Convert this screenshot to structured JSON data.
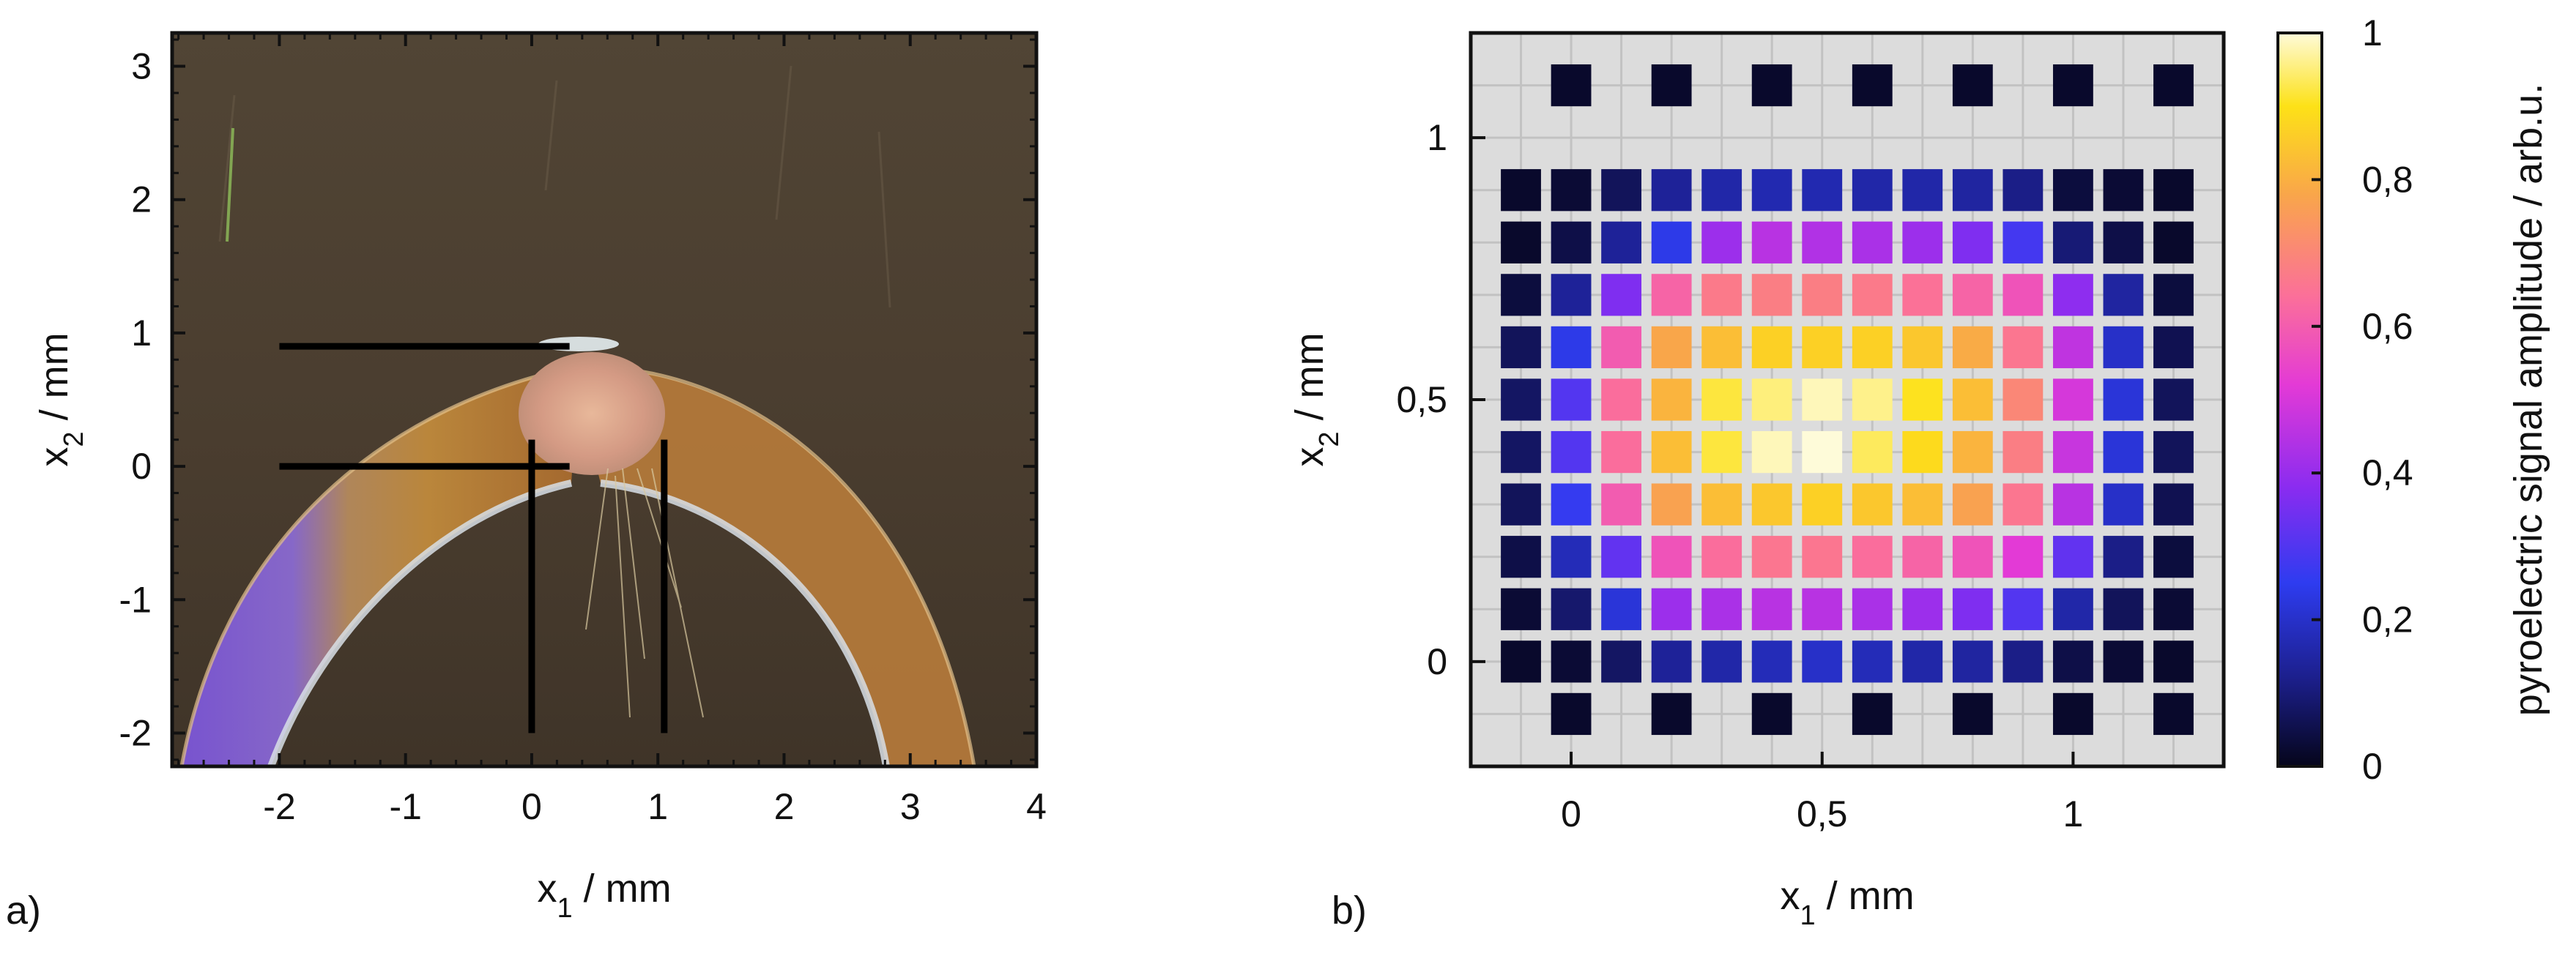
{
  "panels": {
    "a": {
      "label": "a)"
    },
    "b": {
      "label": "b)"
    }
  },
  "chart_data": [
    {
      "type": "image",
      "panel": "a)",
      "description_free": true,
      "x_axis": {
        "label_base": "x",
        "label_sub": "1",
        "label_unit": " / mm",
        "range": [
          -2.85,
          4.0
        ],
        "ticks": [
          -2,
          -1,
          0,
          1,
          2,
          3,
          4
        ],
        "tick_labels": [
          "-2",
          "-1",
          "0",
          "1",
          "2",
          "3",
          "4"
        ]
      },
      "y_axis": {
        "label_base": "x",
        "label_sub": "2",
        "label_unit": " / mm",
        "range": [
          -2.25,
          3.25
        ],
        "ticks": [
          -2,
          -1,
          0,
          1,
          2,
          3
        ],
        "tick_labels": [
          "-2",
          "-1",
          "0",
          "1",
          "2",
          "3"
        ]
      },
      "markers": {
        "horizontal_lines": [
          {
            "y": 0.9,
            "x_from": -2.0,
            "x_to": 0.3
          },
          {
            "y": 0.0,
            "x_from": -2.0,
            "x_to": 0.3
          }
        ],
        "vertical_lines": [
          {
            "x": 0.0,
            "y_from": -2.0,
            "y_to": 0.2
          },
          {
            "x": 1.05,
            "y_from": -2.0,
            "y_to": 0.2
          }
        ]
      }
    },
    {
      "type": "heatmap",
      "panel": "b)",
      "x_axis": {
        "label_base": "x",
        "label_sub": "1",
        "label_unit": " / mm",
        "range": [
          -0.2,
          1.3
        ],
        "ticks": [
          0,
          0.5,
          1
        ],
        "tick_labels": [
          "0",
          "0,5",
          "1"
        ]
      },
      "y_axis": {
        "label_base": "x",
        "label_sub": "2",
        "label_unit": " / mm",
        "range": [
          -0.2,
          1.2
        ],
        "ticks": [
          0,
          0.5,
          1
        ],
        "tick_labels": [
          "0",
          "0,5",
          "1"
        ]
      },
      "grid": true,
      "colorbar": {
        "label": "pyroelectric signal amplitude / arb.u.",
        "range": [
          0,
          1
        ],
        "ticks": [
          0,
          0.2,
          0.4,
          0.6,
          0.8,
          1
        ],
        "tick_labels": [
          "0",
          "0,2",
          "0,4",
          "0,6",
          "0,8",
          "1"
        ],
        "colors": [
          "#05051a",
          "#1c1f8c",
          "#2e3cf0",
          "#8a2cf0",
          "#e33ad6",
          "#fb6f9a",
          "#f9a64a",
          "#fde117",
          "#fefbd9"
        ]
      },
      "main_grid": {
        "x": [
          -0.1,
          0.0,
          0.1,
          0.2,
          0.3,
          0.4,
          0.5,
          0.6,
          0.7,
          0.8,
          0.9,
          1.0,
          1.1,
          1.2
        ],
        "y": [
          0.9,
          0.8,
          0.7,
          0.6,
          0.5,
          0.4,
          0.3,
          0.2,
          0.1,
          0.0
        ],
        "values": [
          [
            0.02,
            0.03,
            0.07,
            0.14,
            0.16,
            0.17,
            0.17,
            0.16,
            0.16,
            0.15,
            0.12,
            0.04,
            0.03,
            0.02
          ],
          [
            0.02,
            0.05,
            0.14,
            0.24,
            0.4,
            0.44,
            0.43,
            0.42,
            0.4,
            0.36,
            0.28,
            0.1,
            0.05,
            0.02
          ],
          [
            0.04,
            0.14,
            0.36,
            0.6,
            0.65,
            0.66,
            0.66,
            0.65,
            0.63,
            0.6,
            0.56,
            0.38,
            0.15,
            0.04
          ],
          [
            0.07,
            0.24,
            0.58,
            0.75,
            0.8,
            0.84,
            0.84,
            0.84,
            0.82,
            0.76,
            0.64,
            0.45,
            0.2,
            0.06
          ],
          [
            0.08,
            0.3,
            0.62,
            0.78,
            0.9,
            0.94,
            0.98,
            0.95,
            0.88,
            0.8,
            0.68,
            0.48,
            0.22,
            0.07
          ],
          [
            0.08,
            0.3,
            0.62,
            0.8,
            0.9,
            0.98,
            1.0,
            0.92,
            0.86,
            0.78,
            0.66,
            0.46,
            0.22,
            0.07
          ],
          [
            0.07,
            0.26,
            0.58,
            0.74,
            0.8,
            0.82,
            0.84,
            0.82,
            0.8,
            0.74,
            0.64,
            0.44,
            0.2,
            0.06
          ],
          [
            0.05,
            0.18,
            0.32,
            0.56,
            0.62,
            0.64,
            0.64,
            0.62,
            0.6,
            0.56,
            0.5,
            0.32,
            0.12,
            0.04
          ],
          [
            0.03,
            0.09,
            0.22,
            0.4,
            0.42,
            0.44,
            0.44,
            0.42,
            0.4,
            0.36,
            0.3,
            0.16,
            0.07,
            0.03
          ],
          [
            0.02,
            0.03,
            0.08,
            0.14,
            0.16,
            0.18,
            0.2,
            0.18,
            0.16,
            0.15,
            0.12,
            0.05,
            0.03,
            0.02
          ]
        ]
      },
      "outer_points": {
        "top_y": 1.1,
        "bottom_y": -0.1,
        "x": [
          0.0,
          0.2,
          0.4,
          0.6,
          0.8,
          1.0,
          1.2
        ],
        "value": 0.02
      }
    }
  ]
}
